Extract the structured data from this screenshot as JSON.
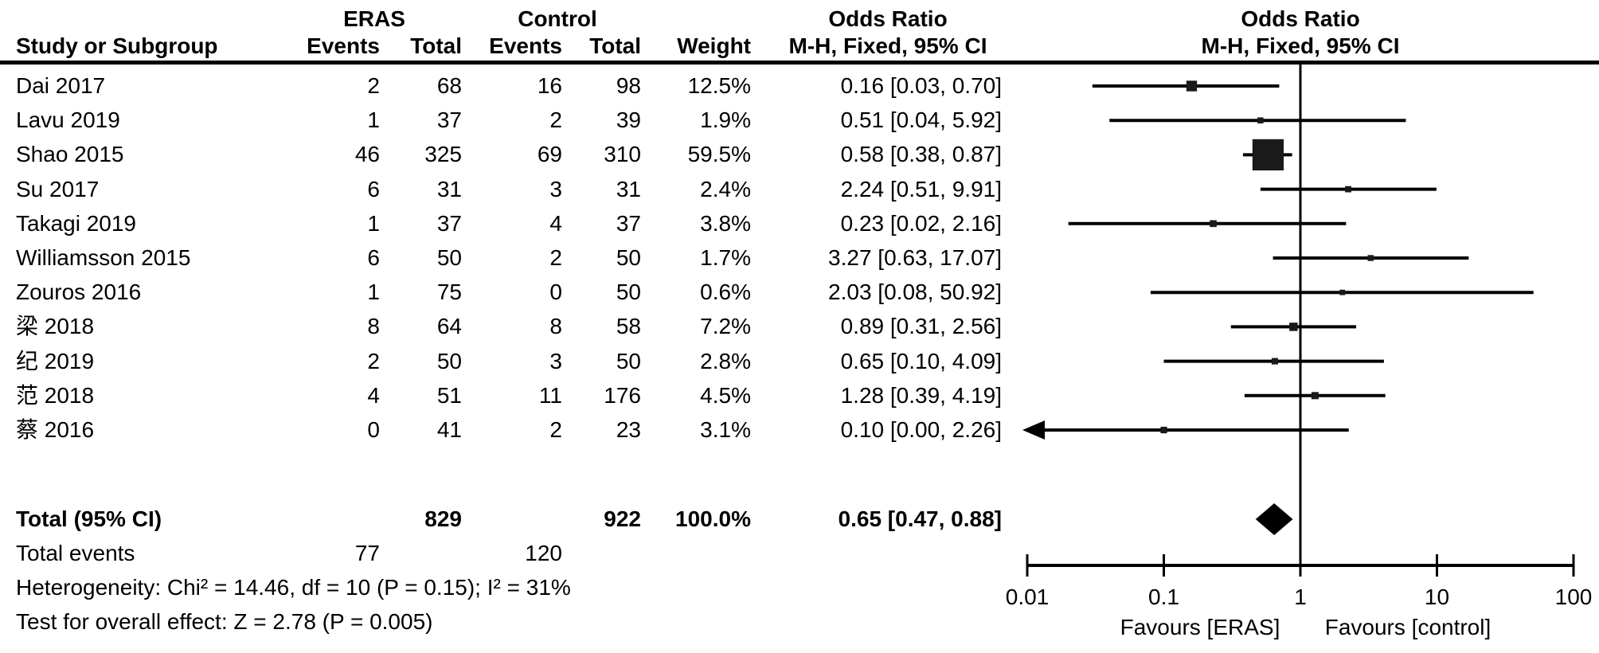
{
  "colors": {
    "ink": "#000000",
    "background": "#ffffff"
  },
  "header": {
    "group_eras": "ERAS",
    "group_control": "Control",
    "or_title_left": "Odds Ratio",
    "or_subtitle_left": "M-H, Fixed, 95% CI",
    "or_title_right": "Odds Ratio",
    "or_subtitle_right": "M-H, Fixed, 95% CI",
    "study_col": "Study or Subgroup",
    "events_col_eras": "Events",
    "total_col_eras": "Total",
    "events_col_control": "Events",
    "total_col_control": "Total",
    "weight_col": "Weight"
  },
  "chart_data": {
    "type": "forest",
    "effect_measure": "Odds Ratio",
    "model": "M-H, Fixed, 95% CI",
    "x_scale": "log",
    "x_ticks": [
      0.01,
      0.1,
      1,
      10,
      100
    ],
    "x_tick_labels": [
      "0.01",
      "0.1",
      "1",
      "10",
      "100"
    ],
    "favours_left": "Favours [ERAS]",
    "favours_right": "Favours [control]",
    "studies": [
      {
        "name": "Dai 2017",
        "eras_events": "2",
        "eras_total": "68",
        "control_events": "16",
        "control_total": "98",
        "weight": "12.5%",
        "weight_pct": 12.5,
        "or": 0.16,
        "ci_low": 0.03,
        "ci_high": 0.7,
        "or_label": "0.16 [0.03, 0.70]",
        "arrow_low": false
      },
      {
        "name": "Lavu 2019",
        "eras_events": "1",
        "eras_total": "37",
        "control_events": "2",
        "control_total": "39",
        "weight": "1.9%",
        "weight_pct": 1.9,
        "or": 0.51,
        "ci_low": 0.04,
        "ci_high": 5.92,
        "or_label": "0.51 [0.04, 5.92]",
        "arrow_low": false
      },
      {
        "name": "Shao 2015",
        "eras_events": "46",
        "eras_total": "325",
        "control_events": "69",
        "control_total": "310",
        "weight": "59.5%",
        "weight_pct": 59.5,
        "or": 0.58,
        "ci_low": 0.38,
        "ci_high": 0.87,
        "or_label": "0.58 [0.38, 0.87]",
        "arrow_low": false
      },
      {
        "name": "Su 2017",
        "eras_events": "6",
        "eras_total": "31",
        "control_events": "3",
        "control_total": "31",
        "weight": "2.4%",
        "weight_pct": 2.4,
        "or": 2.24,
        "ci_low": 0.51,
        "ci_high": 9.91,
        "or_label": "2.24 [0.51, 9.91]",
        "arrow_low": false
      },
      {
        "name": "Takagi 2019",
        "eras_events": "1",
        "eras_total": "37",
        "control_events": "4",
        "control_total": "37",
        "weight": "3.8%",
        "weight_pct": 3.8,
        "or": 0.23,
        "ci_low": 0.02,
        "ci_high": 2.16,
        "or_label": "0.23 [0.02, 2.16]",
        "arrow_low": false
      },
      {
        "name": "Williamsson 2015",
        "eras_events": "6",
        "eras_total": "50",
        "control_events": "2",
        "control_total": "50",
        "weight": "1.7%",
        "weight_pct": 1.7,
        "or": 3.27,
        "ci_low": 0.63,
        "ci_high": 17.07,
        "or_label": "3.27 [0.63, 17.07]",
        "arrow_low": false
      },
      {
        "name": "Zouros 2016",
        "eras_events": "1",
        "eras_total": "75",
        "control_events": "0",
        "control_total": "50",
        "weight": "0.6%",
        "weight_pct": 0.6,
        "or": 2.03,
        "ci_low": 0.08,
        "ci_high": 50.92,
        "or_label": "2.03 [0.08, 50.92]",
        "arrow_low": false
      },
      {
        "name": "梁 2018",
        "eras_events": "8",
        "eras_total": "64",
        "control_events": "8",
        "control_total": "58",
        "weight": "7.2%",
        "weight_pct": 7.2,
        "or": 0.89,
        "ci_low": 0.31,
        "ci_high": 2.56,
        "or_label": "0.89 [0.31, 2.56]",
        "arrow_low": false
      },
      {
        "name": "纪 2019",
        "eras_events": "2",
        "eras_total": "50",
        "control_events": "3",
        "control_total": "50",
        "weight": "2.8%",
        "weight_pct": 2.8,
        "or": 0.65,
        "ci_low": 0.1,
        "ci_high": 4.09,
        "or_label": "0.65 [0.10, 4.09]",
        "arrow_low": false
      },
      {
        "name": "范 2018",
        "eras_events": "4",
        "eras_total": "51",
        "control_events": "11",
        "control_total": "176",
        "weight": "4.5%",
        "weight_pct": 4.5,
        "or": 1.28,
        "ci_low": 0.39,
        "ci_high": 4.19,
        "or_label": "1.28 [0.39, 4.19]",
        "arrow_low": false
      },
      {
        "name": "蔡 2016",
        "eras_events": "0",
        "eras_total": "41",
        "control_events": "2",
        "control_total": "23",
        "weight": "3.1%",
        "weight_pct": 3.1,
        "or": 0.1,
        "ci_low": 0.0,
        "ci_high": 2.26,
        "or_label": "0.10 [0.00, 2.26]",
        "arrow_low": true
      }
    ],
    "total": {
      "label": "Total (95% CI)",
      "eras_total": "829",
      "control_total": "922",
      "weight": "100.0%",
      "or": 0.65,
      "ci_low": 0.47,
      "ci_high": 0.88,
      "or_label": "0.65 [0.47, 0.88]"
    },
    "total_events": {
      "label": "Total events",
      "eras": "77",
      "control": "120"
    },
    "heterogeneity": "Heterogeneity: Chi² = 14.46, df = 10 (P = 0.15); I² = 31%",
    "overall_effect": "Test for overall effect: Z = 2.78 (P = 0.005)"
  }
}
